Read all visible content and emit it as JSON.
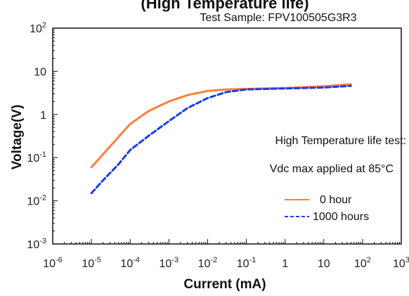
{
  "chart_data": {
    "type": "line",
    "title": "(High Temperature life)",
    "subtitle": "Test    Sample: FPV100505G3R3",
    "xlabel": "Current (mA)",
    "ylabel": "Voltage(V)",
    "xscale": "log",
    "yscale": "log",
    "xlim": [
      1e-06,
      1000
    ],
    "ylim": [
      0.001,
      100
    ],
    "x_tick_labels": [
      "10-6",
      "10-5",
      "10-4",
      "10-3",
      "10-2",
      "10-1",
      "1",
      "10",
      "102",
      "103"
    ],
    "y_tick_labels": [
      "102",
      "10",
      "1",
      "10-1",
      "10-2",
      "10-3"
    ],
    "annotations": [
      "High   Temperature   life   test:",
      "Vdc max applied at  85°C"
    ],
    "legend_position": "bottom-right",
    "series": [
      {
        "name": "0    hour",
        "color": "#ff7f3a",
        "style": "solid",
        "x": [
          1e-05,
          2e-05,
          5e-05,
          0.0001,
          0.0003,
          0.001,
          0.003,
          0.01,
          0.03,
          0.1,
          1,
          10,
          50
        ],
        "y": [
          0.06,
          0.12,
          0.3,
          0.6,
          1.2,
          2.0,
          2.8,
          3.5,
          3.8,
          3.9,
          4.1,
          4.5,
          5.0
        ]
      },
      {
        "name": "1000 hours",
        "color": "#1a3cf0",
        "style": "dashed",
        "x": [
          1e-05,
          2e-05,
          5e-05,
          0.0001,
          0.0003,
          0.001,
          0.003,
          0.01,
          0.03,
          0.1,
          1,
          10,
          50
        ],
        "y": [
          0.015,
          0.03,
          0.07,
          0.15,
          0.32,
          0.7,
          1.4,
          2.4,
          3.3,
          3.8,
          4.0,
          4.2,
          4.6
        ]
      }
    ]
  }
}
